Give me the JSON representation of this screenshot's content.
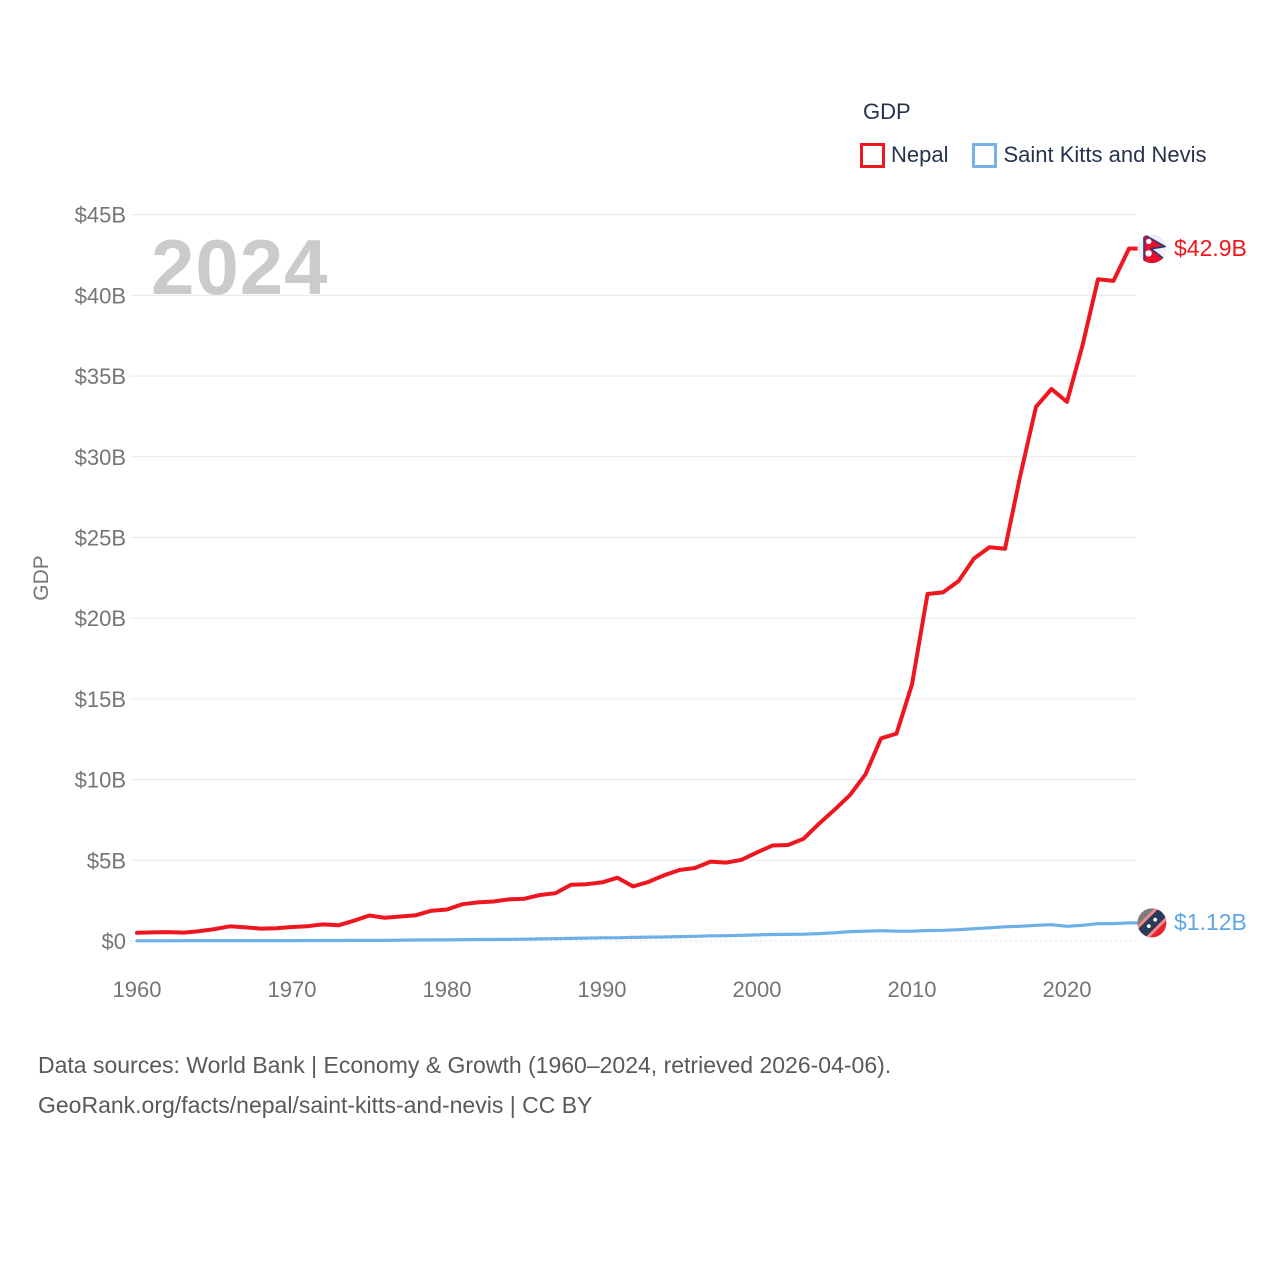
{
  "watermark": "2024",
  "legend": {
    "title": "GDP",
    "items": [
      {
        "label": "Nepal",
        "color": "#ee161f"
      },
      {
        "label": "Saint Kitts and Nevis",
        "color": "#76b1e8"
      }
    ]
  },
  "end_labels": [
    {
      "text": "$42.9B",
      "color": "#ee161f"
    },
    {
      "text": "$1.12B",
      "color": "#5ea6e5"
    }
  ],
  "footer": {
    "line1": "Data sources: World Bank | Economy & Growth (1960–2024, retrieved 2026-04-06).",
    "line2": "GeoRank.org/facts/nepal/saint-kitts-and-nevis | CC BY"
  },
  "chart_data": {
    "type": "line",
    "title": "GDP",
    "xlabel": "",
    "ylabel": "GDP",
    "ylim": [
      0,
      45
    ],
    "grid": true,
    "legend_position": "top-right",
    "yticks": [
      0,
      5,
      10,
      15,
      20,
      25,
      30,
      35,
      40,
      45
    ],
    "ytick_labels": [
      "$0",
      "$5B",
      "$10B",
      "$15B",
      "$20B",
      "$25B",
      "$30B",
      "$35B",
      "$40B",
      "$45B"
    ],
    "xticks": [
      1960,
      1970,
      1980,
      1990,
      2000,
      2010,
      2020
    ],
    "x": [
      1960,
      1961,
      1962,
      1963,
      1964,
      1965,
      1966,
      1967,
      1968,
      1969,
      1970,
      1971,
      1972,
      1973,
      1974,
      1975,
      1976,
      1977,
      1978,
      1979,
      1980,
      1981,
      1982,
      1983,
      1984,
      1985,
      1986,
      1987,
      1988,
      1989,
      1990,
      1991,
      1992,
      1993,
      1994,
      1995,
      1996,
      1997,
      1998,
      1999,
      2000,
      2001,
      2002,
      2003,
      2004,
      2005,
      2006,
      2007,
      2008,
      2009,
      2010,
      2011,
      2012,
      2013,
      2014,
      2015,
      2016,
      2017,
      2018,
      2019,
      2020,
      2021,
      2022,
      2023,
      2024
    ],
    "series": [
      {
        "name": "Nepal",
        "color": "#ee161f",
        "end_label": "$42.9B",
        "flag": "nepal",
        "values": [
          0.51,
          0.53,
          0.55,
          0.52,
          0.61,
          0.74,
          0.91,
          0.84,
          0.77,
          0.79,
          0.87,
          0.92,
          1.03,
          0.97,
          1.26,
          1.58,
          1.44,
          1.52,
          1.6,
          1.88,
          1.95,
          2.28,
          2.39,
          2.45,
          2.58,
          2.62,
          2.85,
          2.96,
          3.49,
          3.52,
          3.63,
          3.92,
          3.38,
          3.66,
          4.07,
          4.4,
          4.52,
          4.92,
          4.86,
          5.03,
          5.49,
          5.92,
          5.95,
          6.33,
          7.27,
          8.13,
          9.04,
          10.33,
          12.55,
          12.85,
          15.9,
          21.5,
          21.6,
          22.3,
          23.7,
          24.4,
          24.3,
          28.9,
          33.1,
          34.2,
          33.4,
          36.9,
          41.0,
          40.9,
          42.9
        ]
      },
      {
        "name": "Saint Kitts and Nevis",
        "color": "#6fafe8",
        "end_label": "$1.12B",
        "flag": "saint-kitts-and-nevis",
        "values": [
          0.01,
          0.01,
          0.01,
          0.02,
          0.02,
          0.02,
          0.02,
          0.02,
          0.02,
          0.02,
          0.02,
          0.03,
          0.03,
          0.03,
          0.04,
          0.04,
          0.04,
          0.05,
          0.06,
          0.07,
          0.07,
          0.08,
          0.09,
          0.09,
          0.1,
          0.11,
          0.13,
          0.14,
          0.16,
          0.18,
          0.2,
          0.2,
          0.22,
          0.24,
          0.25,
          0.27,
          0.29,
          0.32,
          0.33,
          0.35,
          0.38,
          0.4,
          0.41,
          0.42,
          0.46,
          0.51,
          0.58,
          0.61,
          0.64,
          0.61,
          0.61,
          0.65,
          0.66,
          0.7,
          0.76,
          0.82,
          0.88,
          0.91,
          0.97,
          1.01,
          0.91,
          0.97,
          1.07,
          1.08,
          1.12
        ]
      }
    ]
  }
}
